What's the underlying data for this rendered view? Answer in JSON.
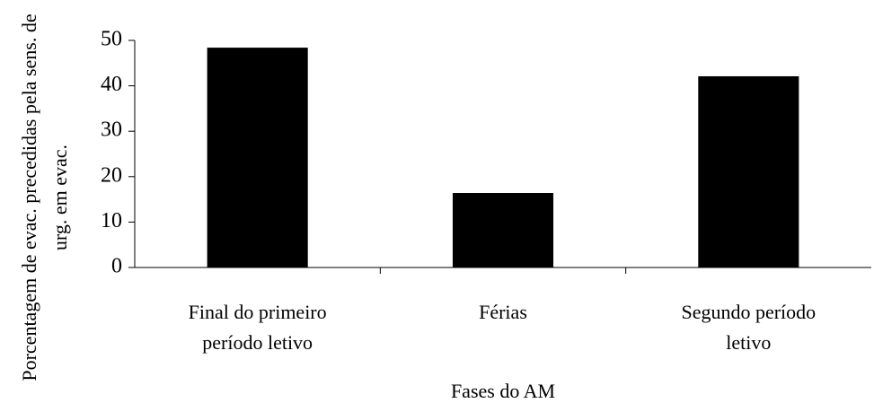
{
  "chart_data": {
    "type": "bar",
    "x_label": "Fases do AM",
    "y_label": "Porcentagem de evac. precedidas pela sens. de urg. em evac.",
    "categories": [
      "Final do primeiro período letivo",
      "Férias",
      "Segundo período letivo"
    ],
    "values": [
      48.4,
      16.4,
      42.1
    ],
    "color": "#000000",
    "ylim": [
      0,
      50
    ],
    "yticks": [
      0,
      10,
      20,
      30,
      40,
      50
    ],
    "grid": false
  }
}
